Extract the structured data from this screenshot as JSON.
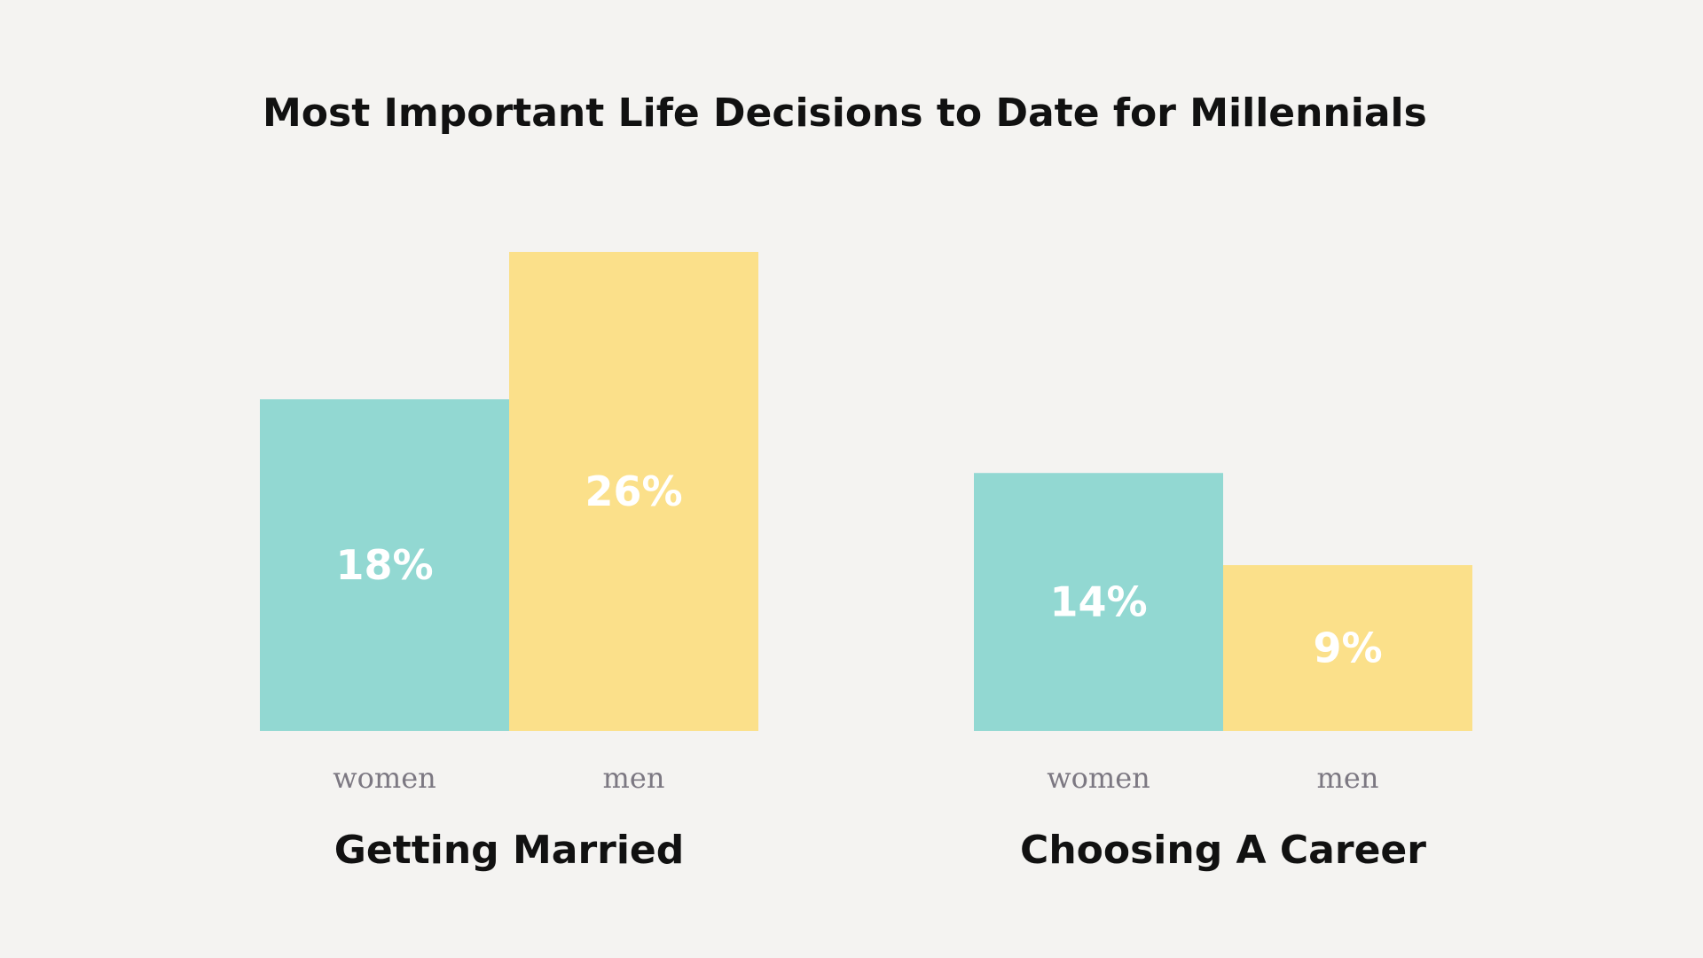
{
  "chart_data": {
    "type": "bar",
    "title": "Most Important Life Decisions to Date for Millennials",
    "categories": [
      "Getting Married",
      "Choosing A Career"
    ],
    "series": [
      {
        "name": "women",
        "values": [
          18,
          14
        ],
        "labels": [
          "18%",
          "14%"
        ],
        "color": "#92d8d2"
      },
      {
        "name": "men",
        "values": [
          26,
          9
        ],
        "labels": [
          "26%",
          "9%"
        ],
        "color": "#fbe08a"
      }
    ],
    "ylim": [
      0,
      26
    ],
    "grid": false,
    "legend": "none"
  }
}
